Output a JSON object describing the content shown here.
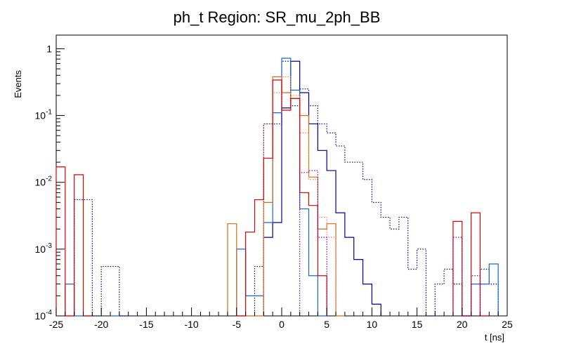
{
  "chart_data": {
    "type": "histogram",
    "title": "ph_t Region: SR_mu_2ph_BB",
    "xlabel": "t [ns]",
    "ylabel": "Events",
    "xlim": [
      -25,
      25
    ],
    "ylim": [
      0.0001,
      1.6
    ],
    "yscale": "log",
    "bin_width": 1,
    "x_ticks": [
      "-25",
      "-20",
      "-15",
      "-10",
      "-5",
      "0",
      "5",
      "10",
      "15",
      "20",
      "25"
    ],
    "y_ticks": [
      {
        "base": "10",
        "exp": "-4",
        "value": 0.0001
      },
      {
        "base": "10",
        "exp": "-3",
        "value": 0.001
      },
      {
        "base": "10",
        "exp": "-2",
        "value": 0.01
      },
      {
        "base": "10",
        "exp": "-1",
        "value": 0.1
      },
      {
        "base": "1",
        "exp": "",
        "value": 1
      }
    ],
    "series": [
      {
        "name": "navy-dotted",
        "color": "#00008b",
        "style": "dotted",
        "bins": [
          [
            -24,
            0.0001
          ],
          [
            -23,
            0.0055
          ],
          [
            -22,
            0.0055
          ],
          [
            -21,
            0.0001
          ],
          [
            -20,
            0.00055
          ],
          [
            -19,
            0.00055
          ],
          [
            -18,
            0.0001
          ],
          [
            -3,
            0.00055
          ],
          [
            -2,
            0.075
          ],
          [
            -1,
            0.075
          ],
          [
            0,
            0.65
          ],
          [
            1,
            0.14
          ],
          [
            2,
            0.25
          ],
          [
            3,
            0.14
          ],
          [
            4,
            0.075
          ],
          [
            5,
            0.055
          ],
          [
            6,
            0.035
          ],
          [
            7,
            0.02
          ],
          [
            8,
            0.02
          ],
          [
            9,
            0.011
          ],
          [
            10,
            0.005
          ],
          [
            11,
            0.003
          ],
          [
            12,
            0.002
          ],
          [
            13,
            0.003
          ],
          [
            14,
            0.0005
          ],
          [
            15,
            0.001
          ],
          [
            16,
            0.0001
          ],
          [
            17,
            0.0003
          ],
          [
            18,
            0.0005
          ],
          [
            19,
            0.0003
          ],
          [
            20,
            0.0001
          ],
          [
            21,
            0.0001
          ],
          [
            22,
            0.0005
          ],
          [
            23,
            0.0003
          ]
        ]
      },
      {
        "name": "navy-solid",
        "color": "#00008b",
        "style": "solid",
        "bins": [
          [
            -2,
            0.0015
          ],
          [
            -1,
            0.0025
          ],
          [
            0,
            0.13
          ],
          [
            1,
            0.65
          ],
          [
            2,
            0.22
          ],
          [
            3,
            0.075
          ],
          [
            4,
            0.03
          ],
          [
            5,
            0.015
          ],
          [
            6,
            0.0035
          ],
          [
            7,
            0.0015
          ],
          [
            8,
            0.0007
          ],
          [
            9,
            0.0003
          ],
          [
            10,
            0.00015
          ]
        ]
      },
      {
        "name": "blue-solid",
        "color": "#1e64c8",
        "style": "solid",
        "bins": [
          [
            -24,
            0.0003
          ],
          [
            -23,
            0.0001
          ],
          [
            -22,
            0.0001
          ],
          [
            -19,
            0.0001
          ],
          [
            -5,
            0.001
          ],
          [
            -4,
            0.0002
          ],
          [
            -3,
            0.0002
          ],
          [
            -2,
            0.0025
          ],
          [
            -1,
            0.11
          ],
          [
            0,
            0.72
          ],
          [
            1,
            0.24
          ],
          [
            2,
            0.004
          ],
          [
            3,
            0.0004
          ],
          [
            4,
            0.0001
          ],
          [
            20,
            0.0001
          ],
          [
            21,
            0.0003
          ],
          [
            22,
            0.0003
          ],
          [
            23,
            0.0006
          ]
        ]
      },
      {
        "name": "orange-solid",
        "color": "#d2691e",
        "style": "solid",
        "bins": [
          [
            -6,
            0.0024
          ],
          [
            -5,
            0.0001
          ],
          [
            -4,
            0.0001
          ],
          [
            -3,
            0.0001
          ],
          [
            -2,
            0.005
          ],
          [
            -1,
            0.38
          ],
          [
            0,
            0.22
          ],
          [
            1,
            0.18
          ],
          [
            2,
            0.1
          ],
          [
            3,
            0.012
          ],
          [
            4,
            0.002
          ],
          [
            5,
            0.0024
          ],
          [
            6,
            0.0001
          ]
        ]
      },
      {
        "name": "orange-dotted",
        "color": "#ff7f50",
        "style": "dotted",
        "bins": [
          [
            -2,
            0.075
          ],
          [
            -1,
            0.22
          ],
          [
            0,
            0.38
          ],
          [
            1,
            0.2
          ],
          [
            2,
            0.055
          ],
          [
            3,
            0.011
          ],
          [
            4,
            0.003
          ],
          [
            5,
            0.0015
          ]
        ]
      },
      {
        "name": "red-solid",
        "color": "#dd0000",
        "style": "solid",
        "bins": [
          [
            -25,
            0.017
          ],
          [
            -24,
            0.0001
          ],
          [
            -23,
            0.013
          ],
          [
            -22,
            0.0001
          ],
          [
            -5,
            0.0001
          ],
          [
            -4,
            0.0018
          ],
          [
            -3,
            0.0055
          ],
          [
            -2,
            0.023
          ],
          [
            -1,
            0.34
          ],
          [
            0,
            0.12
          ],
          [
            1,
            0.18
          ],
          [
            2,
            0.007
          ],
          [
            3,
            0.0045
          ],
          [
            4,
            0.0004
          ],
          [
            19,
            0.0026
          ],
          [
            20,
            0.0001
          ],
          [
            21,
            0.0035
          ],
          [
            22,
            0.0001
          ]
        ]
      },
      {
        "name": "purple-dotted",
        "color": "#8b008b",
        "style": "dotted",
        "bins": [
          [
            2,
            0.014
          ],
          [
            3,
            0.015
          ],
          [
            4,
            0.0015
          ],
          [
            19,
            0.0015
          ],
          [
            20,
            0.0001
          ],
          [
            21,
            0.0004
          ],
          [
            22,
            0.0001
          ]
        ]
      }
    ]
  }
}
